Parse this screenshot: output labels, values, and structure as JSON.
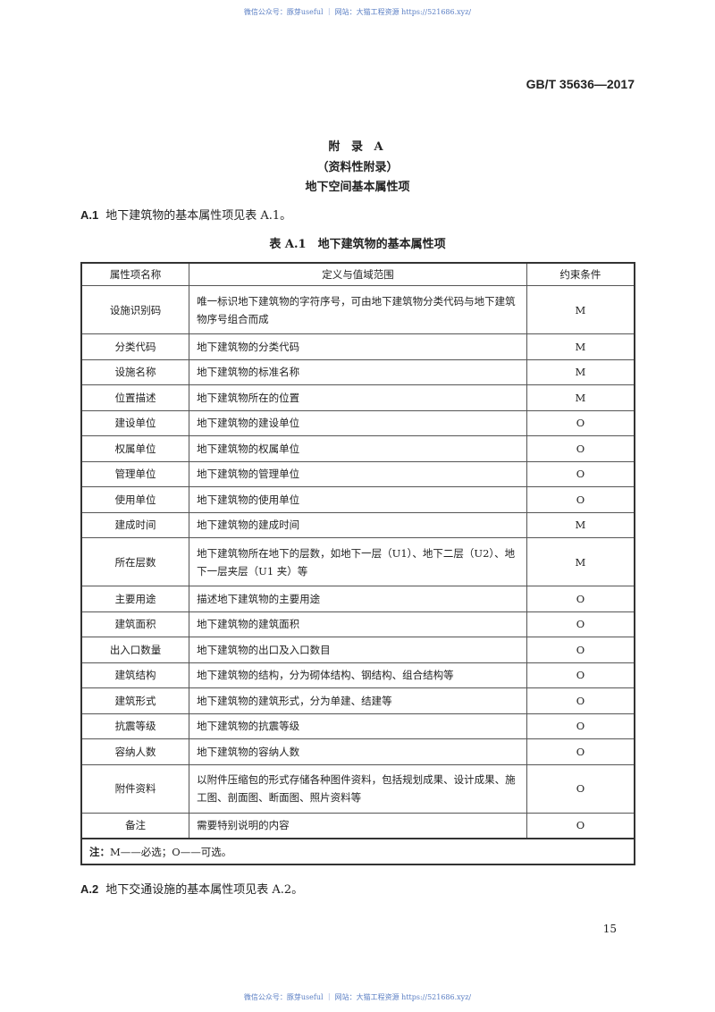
{
  "watermark": "微信公众号：豚芽useful ｜ 网站：大猫工程资源 https://521686.xyz/",
  "standard_code": "GB/T 35636—2017",
  "appendix": {
    "title": "附 录 A",
    "subtitle": "（资料性附录）",
    "heading": "地下空间基本属性项"
  },
  "section_a1": {
    "number": "A.1",
    "text": "地下建筑物的基本属性项见表 A.1。"
  },
  "table": {
    "caption": "表 A.1　地下建筑物的基本属性项",
    "headers": [
      "属性项名称",
      "定义与值域范围",
      "约束条件"
    ],
    "rows": [
      {
        "name": "设施识别码",
        "definition": "唯一标识地下建筑物的字符序号，可由地下建筑物分类代码与地下建筑物序号组合而成",
        "constraint": "M"
      },
      {
        "name": "分类代码",
        "definition": "地下建筑物的分类代码",
        "constraint": "M"
      },
      {
        "name": "设施名称",
        "definition": "地下建筑物的标准名称",
        "constraint": "M"
      },
      {
        "name": "位置描述",
        "definition": "地下建筑物所在的位置",
        "constraint": "M"
      },
      {
        "name": "建设单位",
        "definition": "地下建筑物的建设单位",
        "constraint": "O"
      },
      {
        "name": "权属单位",
        "definition": "地下建筑物的权属单位",
        "constraint": "O"
      },
      {
        "name": "管理单位",
        "definition": "地下建筑物的管理单位",
        "constraint": "O"
      },
      {
        "name": "使用单位",
        "definition": "地下建筑物的使用单位",
        "constraint": "O"
      },
      {
        "name": "建成时间",
        "definition": "地下建筑物的建成时间",
        "constraint": "M"
      },
      {
        "name": "所在层数",
        "definition": "地下建筑物所在地下的层数，如地下一层（U1）、地下二层（U2）、地下一层夹层（U1 夹）等",
        "constraint": "M"
      },
      {
        "name": "主要用途",
        "definition": "描述地下建筑物的主要用途",
        "constraint": "O"
      },
      {
        "name": "建筑面积",
        "definition": "地下建筑物的建筑面积",
        "constraint": "O"
      },
      {
        "name": "出入口数量",
        "definition": "地下建筑物的出口及入口数目",
        "constraint": "O"
      },
      {
        "name": "建筑结构",
        "definition": "地下建筑物的结构，分为砌体结构、钢结构、组合结构等",
        "constraint": "O"
      },
      {
        "name": "建筑形式",
        "definition": "地下建筑物的建筑形式，分为单建、结建等",
        "constraint": "O"
      },
      {
        "name": "抗震等级",
        "definition": "地下建筑物的抗震等级",
        "constraint": "O"
      },
      {
        "name": "容纳人数",
        "definition": "地下建筑物的容纳人数",
        "constraint": "O"
      },
      {
        "name": "附件资料",
        "definition": "以附件压缩包的形式存储各种图件资料，包括规划成果、设计成果、施工图、剖面图、断面图、照片资料等",
        "constraint": "O"
      },
      {
        "name": "备注",
        "definition": "需要特别说明的内容",
        "constraint": "O"
      }
    ],
    "note_label": "注：",
    "note": "M——必选；O——可选。"
  },
  "section_a2": {
    "number": "A.2",
    "text": "地下交通设施的基本属性项见表 A.2。"
  },
  "page_number": "15"
}
